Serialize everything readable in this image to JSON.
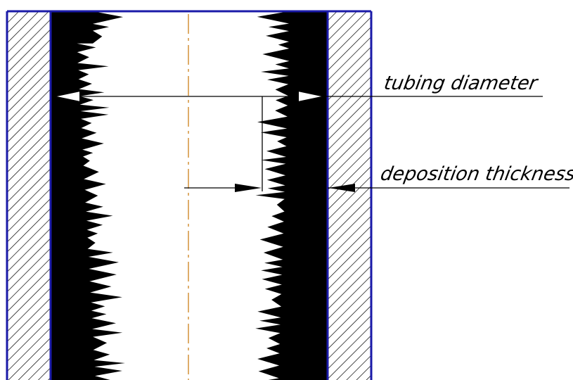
{
  "labels": {
    "tubing_diameter": "tubing diameter",
    "deposition_thickness": "deposition thickness"
  },
  "colors": {
    "tube_border": "#1a1aa8",
    "deposit": "#000000",
    "hatch": "#000000",
    "centerline": "#d08a2a",
    "background": "#ffffff"
  }
}
